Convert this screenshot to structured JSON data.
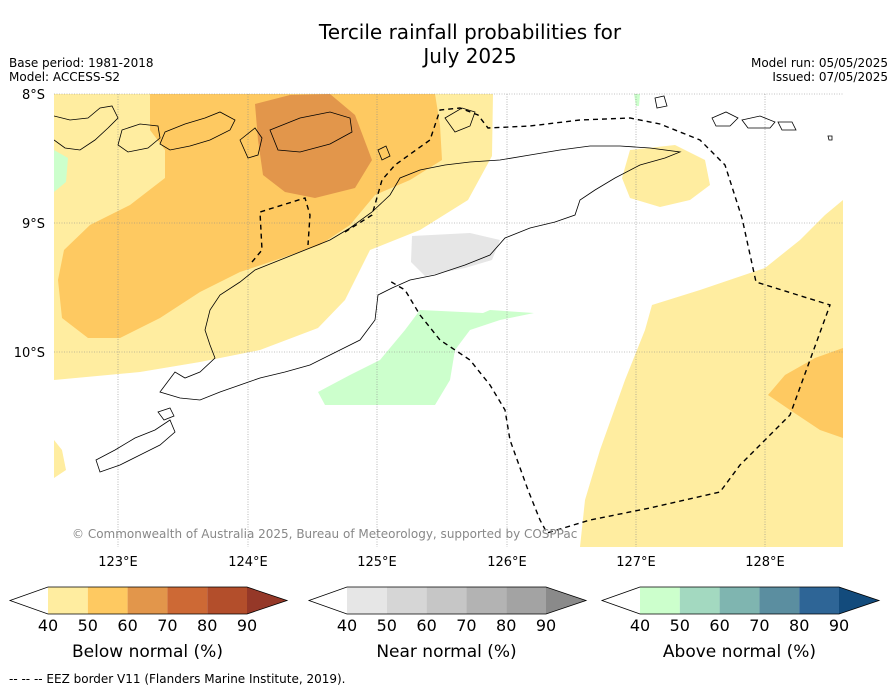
{
  "header": {
    "title_line1": "Tercile rainfall probabilities for",
    "title_line2": "July 2025",
    "base_period": "Base period: 1981-2018",
    "model": "Model: ACCESS-S2",
    "model_run": "Model run: 05/05/2025",
    "issued": "Issued: 07/05/2025"
  },
  "map": {
    "lat_labels": [
      "8°S",
      "9°S",
      "10°S"
    ],
    "lon_labels": [
      "123°E",
      "124°E",
      "125°E",
      "126°E",
      "127°E",
      "128°E"
    ],
    "copyright": "© Commonwealth of Australia 2025, Bureau of Meteorology, supported by COSPPac"
  },
  "colorbars": [
    {
      "title": "Below normal (%)",
      "ticks": [
        "40",
        "50",
        "60",
        "70",
        "80",
        "90"
      ],
      "colors": [
        "#ffeda0",
        "#fec961",
        "#e2964b",
        "#cd6935",
        "#b34e2b",
        "#953828"
      ],
      "under_color": "#ffffff"
    },
    {
      "title": "Near normal (%)",
      "ticks": [
        "40",
        "50",
        "60",
        "70",
        "80",
        "90"
      ],
      "colors": [
        "#e6e6e6",
        "#d6d6d6",
        "#c6c6c6",
        "#b3b3b3",
        "#a3a3a3",
        "#8a8a8a"
      ],
      "under_color": "#ffffff"
    },
    {
      "title": "Above normal (%)",
      "ticks": [
        "40",
        "50",
        "60",
        "70",
        "80",
        "90"
      ],
      "colors": [
        "#ccffcc",
        "#a3d9c0",
        "#7fb5b0",
        "#5b8ea0",
        "#2e6596",
        "#134b7c"
      ],
      "under_color": "#ffffff"
    }
  ],
  "legend_note": "--  --  -- EEZ border V11 (Flanders Marine Institute, 2019)."
}
